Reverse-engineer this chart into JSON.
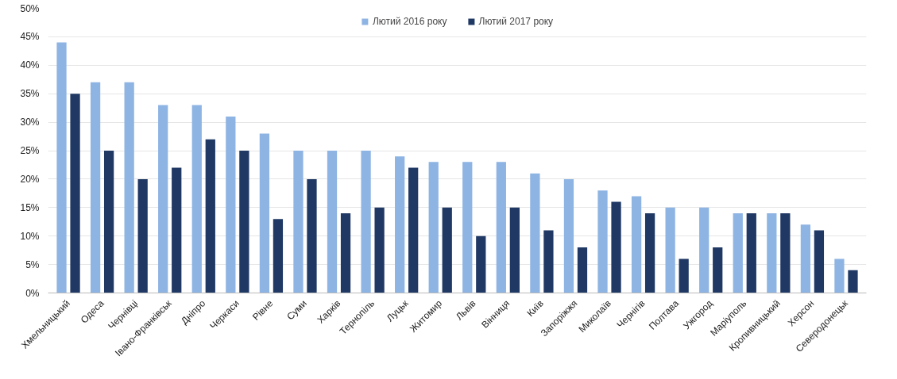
{
  "chart_data": {
    "type": "bar",
    "categories": [
      "Хмельницький",
      "Одеса",
      "Чернівці",
      "Івано-Франківськ",
      "Дніпро",
      "Черкаси",
      "Рівне",
      "Суми",
      "Харків",
      "Тернопіль",
      "Луцьк",
      "Житомир",
      "Львів",
      "Вінниця",
      "Київ",
      "Запоріжжя",
      "Миколаїв",
      "Чернігів",
      "Полтава",
      "Ужгород",
      "Маріуполь",
      "Кропивницький",
      "Херсон",
      "Северодонецьк"
    ],
    "series": [
      {
        "name": "Лютий 2016 року",
        "color": "#8eb4e3",
        "values": [
          44,
          37,
          37,
          33,
          33,
          31,
          28,
          25,
          25,
          25,
          24,
          23,
          23,
          23,
          21,
          20,
          18,
          17,
          15,
          15,
          14,
          14,
          12,
          6
        ]
      },
      {
        "name": "Лютий 2017 року",
        "color": "#1f3864",
        "values": [
          35,
          25,
          20,
          22,
          27,
          25,
          13,
          20,
          14,
          15,
          22,
          15,
          10,
          15,
          11,
          8,
          16,
          14,
          6,
          8,
          14,
          14,
          11,
          4
        ]
      }
    ],
    "ylim": [
      0,
      50
    ],
    "yticks": [
      {
        "value": 0,
        "label": "0%"
      },
      {
        "value": 5,
        "label": "5%"
      },
      {
        "value": 10,
        "label": "10%"
      },
      {
        "value": 15,
        "label": "15%"
      },
      {
        "value": 20,
        "label": "20%"
      },
      {
        "value": 25,
        "label": "25%"
      },
      {
        "value": 30,
        "label": "30%"
      },
      {
        "value": 35,
        "label": "35%"
      },
      {
        "value": 40,
        "label": "40%"
      },
      {
        "value": 45,
        "label": "45%"
      },
      {
        "value": 50,
        "label": "50%"
      }
    ],
    "grid": "y",
    "legend": "top"
  }
}
